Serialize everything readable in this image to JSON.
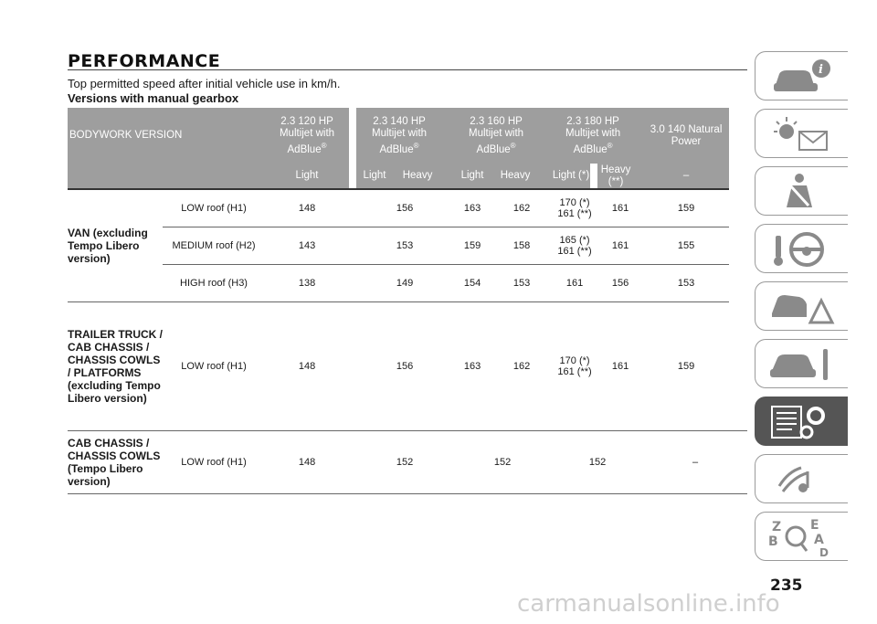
{
  "title": "PERFORMANCE",
  "subtitle": "Top permitted speed after initial vehicle use in km/h.",
  "section_title": "Versions with manual gearbox",
  "table": {
    "bodywork_header": "BODYWORK VERSION",
    "engines": [
      {
        "line1": "2.3 120 HP",
        "line2": "Multijet with",
        "line3": "AdBlue",
        "sup": "®"
      },
      {
        "line1": "2.3 140 HP",
        "line2": "Multijet with",
        "line3": "AdBlue",
        "sup": "®"
      },
      {
        "line1": "2.3 160 HP",
        "line2": "Multijet with",
        "line3": "AdBlue",
        "sup": "®"
      },
      {
        "line1": "2.3 180 HP",
        "line2": "Multijet with",
        "line3": "AdBlue",
        "sup": "®"
      },
      {
        "line1": "3.0 140 Natural",
        "line2": "Power",
        "line3": "",
        "sup": ""
      }
    ],
    "subheaders": [
      "Light",
      "Light",
      "Heavy",
      "Light",
      "Heavy",
      "Light (*)",
      "Heavy (**)",
      "–"
    ],
    "groups": [
      {
        "name": "VAN (excluding Tempo Libero version)",
        "rows": [
          {
            "roof": "LOW roof (H1)",
            "v": [
              "148",
              "156",
              "163",
              "162",
              "170 (*)",
              "161 (**)",
              "161",
              "159"
            ]
          },
          {
            "roof": "MEDIUM roof (H2)",
            "v": [
              "143",
              "153",
              "159",
              "158",
              "165 (*)",
              "161 (**)",
              "161",
              "155"
            ]
          },
          {
            "roof": "HIGH roof (H3)",
            "v": [
              "138",
              "149",
              "154",
              "153",
              "161",
              "",
              "156",
              "153"
            ]
          }
        ]
      },
      {
        "name": "TRAILER TRUCK / CAB CHASSIS / CHASSIS COWLS / PLATFORMS (excluding Tempo Libero version)",
        "rows": [
          {
            "roof": "LOW roof (H1)",
            "v": [
              "148",
              "156",
              "163",
              "162",
              "170 (*)",
              "161 (**)",
              "161",
              "159"
            ]
          }
        ]
      },
      {
        "name": "CAB CHASSIS / CHASSIS COWLS (Tempo Libero version)",
        "rows": [
          {
            "roof": "LOW roof (H1)",
            "v": [
              "148",
              "152",
              "152",
              "152",
              "–"
            ]
          }
        ]
      }
    ]
  },
  "side_tabs": [
    {
      "icon": "car-info-icon",
      "active": false
    },
    {
      "icon": "warning-lights-icon",
      "active": false
    },
    {
      "icon": "airbag-safety-icon",
      "active": false
    },
    {
      "icon": "steering-wheel-key-icon",
      "active": false
    },
    {
      "icon": "car-emergency-icon",
      "active": false
    },
    {
      "icon": "car-maintenance-icon",
      "active": false
    },
    {
      "icon": "technical-data-icon",
      "active": true
    },
    {
      "icon": "multimedia-icon",
      "active": false
    },
    {
      "icon": "index-search-icon",
      "active": false
    }
  ],
  "page_number": "235",
  "watermark": "carmanualsonline.info"
}
